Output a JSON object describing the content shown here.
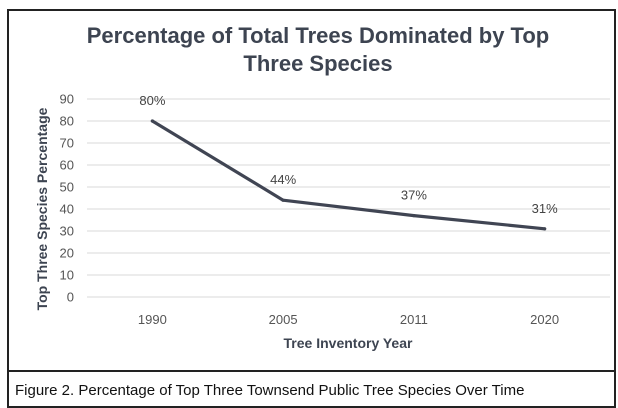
{
  "chart_data": {
    "type": "line",
    "title": "Percentage of Total Trees Dominated by Top Three Species",
    "title_lines": [
      "Percentage of Total Trees Dominated by Top",
      "Three Species"
    ],
    "xlabel": "Tree Inventory Year",
    "ylabel": "Top Three Species Percentage",
    "categories": [
      "1990",
      "2005",
      "2011",
      "2020"
    ],
    "series": [
      {
        "values": [
          80,
          44,
          37,
          31
        ],
        "data_labels": [
          "80%",
          "44%",
          "37%",
          "31%"
        ]
      }
    ],
    "ylim": [
      0,
      90
    ],
    "yticks": [
      0,
      10,
      20,
      30,
      40,
      50,
      60,
      70,
      80,
      90
    ],
    "grid": true,
    "legend": "none",
    "colors": {
      "line": "#404553",
      "grid": "#d9d9d9",
      "title": "#3d4451"
    }
  },
  "caption": "Figure 2. Percentage of Top Three Townsend Public Tree Species Over Time"
}
